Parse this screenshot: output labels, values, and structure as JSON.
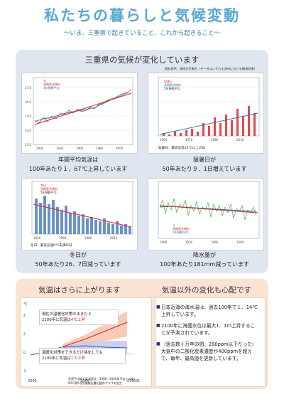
{
  "title": "私たちの暮らしと気候変動",
  "subtitle": "〜いま、三重県で起きていること、これから起きること〜",
  "panel": {
    "heading": "三重県の気候が変化しています",
    "source": "資料提供：津地方気象台（データはいずれも津市における観測結果）",
    "charts": [
      {
        "caption_line1": "年間平均気温は",
        "caption_line2": "100年あたり１．67℃上昇しています",
        "legend": [
          "年",
          "長期変化傾向",
          "5年移動平均"
        ],
        "note": ""
      },
      {
        "caption_line1": "猛暑日が",
        "caption_line2": "50年あたり９．1日増えています",
        "legend": [
          "猛暑日",
          "長期変化傾向",
          "5年移動平均"
        ],
        "note": "猛暑日：最高気温35℃以上の日"
      },
      {
        "caption_line1": "冬日が",
        "caption_line2": "50年あたり26．7日減っています",
        "legend": [
          "冬日",
          "長期変化傾向",
          "5年移動平均"
        ],
        "note": "冬日：最低気温0℃未満の日"
      },
      {
        "caption_line1": "降水量が",
        "caption_line2": "100年あたり181mm減っています",
        "legend": [
          "年",
          "長期変化傾向",
          "5年移動平均"
        ],
        "note": ""
      }
    ]
  },
  "future": {
    "heading": "気温はさらに上がります",
    "y_unit": "℃",
    "x_ticks": [
      "2000",
      "2050",
      "2100年"
    ],
    "box_high_l1": "現在の温暖化対策のままだと",
    "box_high_l2": "2100年に気温は",
    "box_high_red": "4℃上昇",
    "box_low_l1": "温暖化対策をできるだけ強化しても",
    "box_low_l2": "2100年に気温は",
    "box_low_red": "1℃上昇",
    "source1": "世界平均地上気温変化（1986〜2005年平均との差）",
    "source2": "IPCC第5次評価報告書記載のグラフを加工"
  },
  "other": {
    "heading": "気温以外の変化も心配です",
    "bullets": [
      "日本近海の海水温は、過去100年で１．14℃上昇しています。",
      "2100年に海面水位は最大1．1m上昇することが予測されています。",
      "（過去数十万年の間、280ppm以下だった）大気中の二酸化炭素濃度が400ppmを超えて、毎年、最高値を更新しています。"
    ]
  },
  "colors": {
    "title": "#5aa8cf",
    "panel": "#dfe6ef",
    "lower": "#fbe3d3",
    "accent_red": "#d8262c"
  },
  "chart_data": [
    {
      "type": "line",
      "title": "",
      "x": [
        1890,
        1900,
        1910,
        1920,
        1930,
        1940,
        1950,
        1960,
        1970,
        1980,
        1990,
        2000,
        2010,
        2016
      ],
      "series": [
        {
          "name": "年",
          "values": [
            14.3,
            14.2,
            14.5,
            14.4,
            14.7,
            14.6,
            14.9,
            15.0,
            14.9,
            15.2,
            15.6,
            15.8,
            16.0,
            16.4
          ]
        },
        {
          "name": "長期変化傾向",
          "values": [
            14.1,
            14.3,
            14.4,
            14.6,
            14.8,
            14.9,
            15.1,
            15.3,
            15.4,
            15.6,
            15.8,
            15.9,
            16.1,
            16.2
          ]
        }
      ],
      "ylim": [
        12.0,
        18.0
      ]
    },
    {
      "type": "bar",
      "title": "",
      "x": [
        1960,
        1965,
        1970,
        1975,
        1980,
        1985,
        1990,
        1995,
        2000,
        2005,
        2010,
        2015
      ],
      "values": [
        2,
        1,
        0,
        1,
        3,
        4,
        2,
        8,
        9,
        6,
        12,
        10
      ],
      "ylim": [
        0,
        30
      ]
    },
    {
      "type": "bar",
      "title": "",
      "x": [
        1930,
        1940,
        1950,
        1960,
        1970,
        1980,
        1990,
        2000,
        2010,
        2016
      ],
      "values": [
        45,
        55,
        40,
        32,
        30,
        25,
        20,
        18,
        12,
        10
      ],
      "ylim": [
        0,
        90
      ]
    },
    {
      "type": "line",
      "title": "",
      "x": [
        1890,
        1910,
        1930,
        1950,
        1970,
        1990,
        2010,
        2016
      ],
      "series": [
        {
          "name": "年",
          "values": [
            1900,
            1750,
            1820,
            1700,
            1650,
            1600,
            1580,
            1620
          ]
        }
      ],
      "ylim": [
        1000,
        2600
      ]
    },
    {
      "type": "area",
      "title": "",
      "x": [
        2000,
        2025,
        2050,
        2075,
        2100
      ],
      "series": [
        {
          "name": "現在の温暖化対策のままだと",
          "values": [
            0.5,
            1.0,
            2.0,
            3.0,
            4.0
          ]
        },
        {
          "name": "温暖化対策をできるだけ強化しても",
          "values": [
            0.5,
            0.9,
            1.0,
            1.0,
            1.0
          ]
        }
      ],
      "ylim": [
        -2,
        6
      ]
    }
  ]
}
